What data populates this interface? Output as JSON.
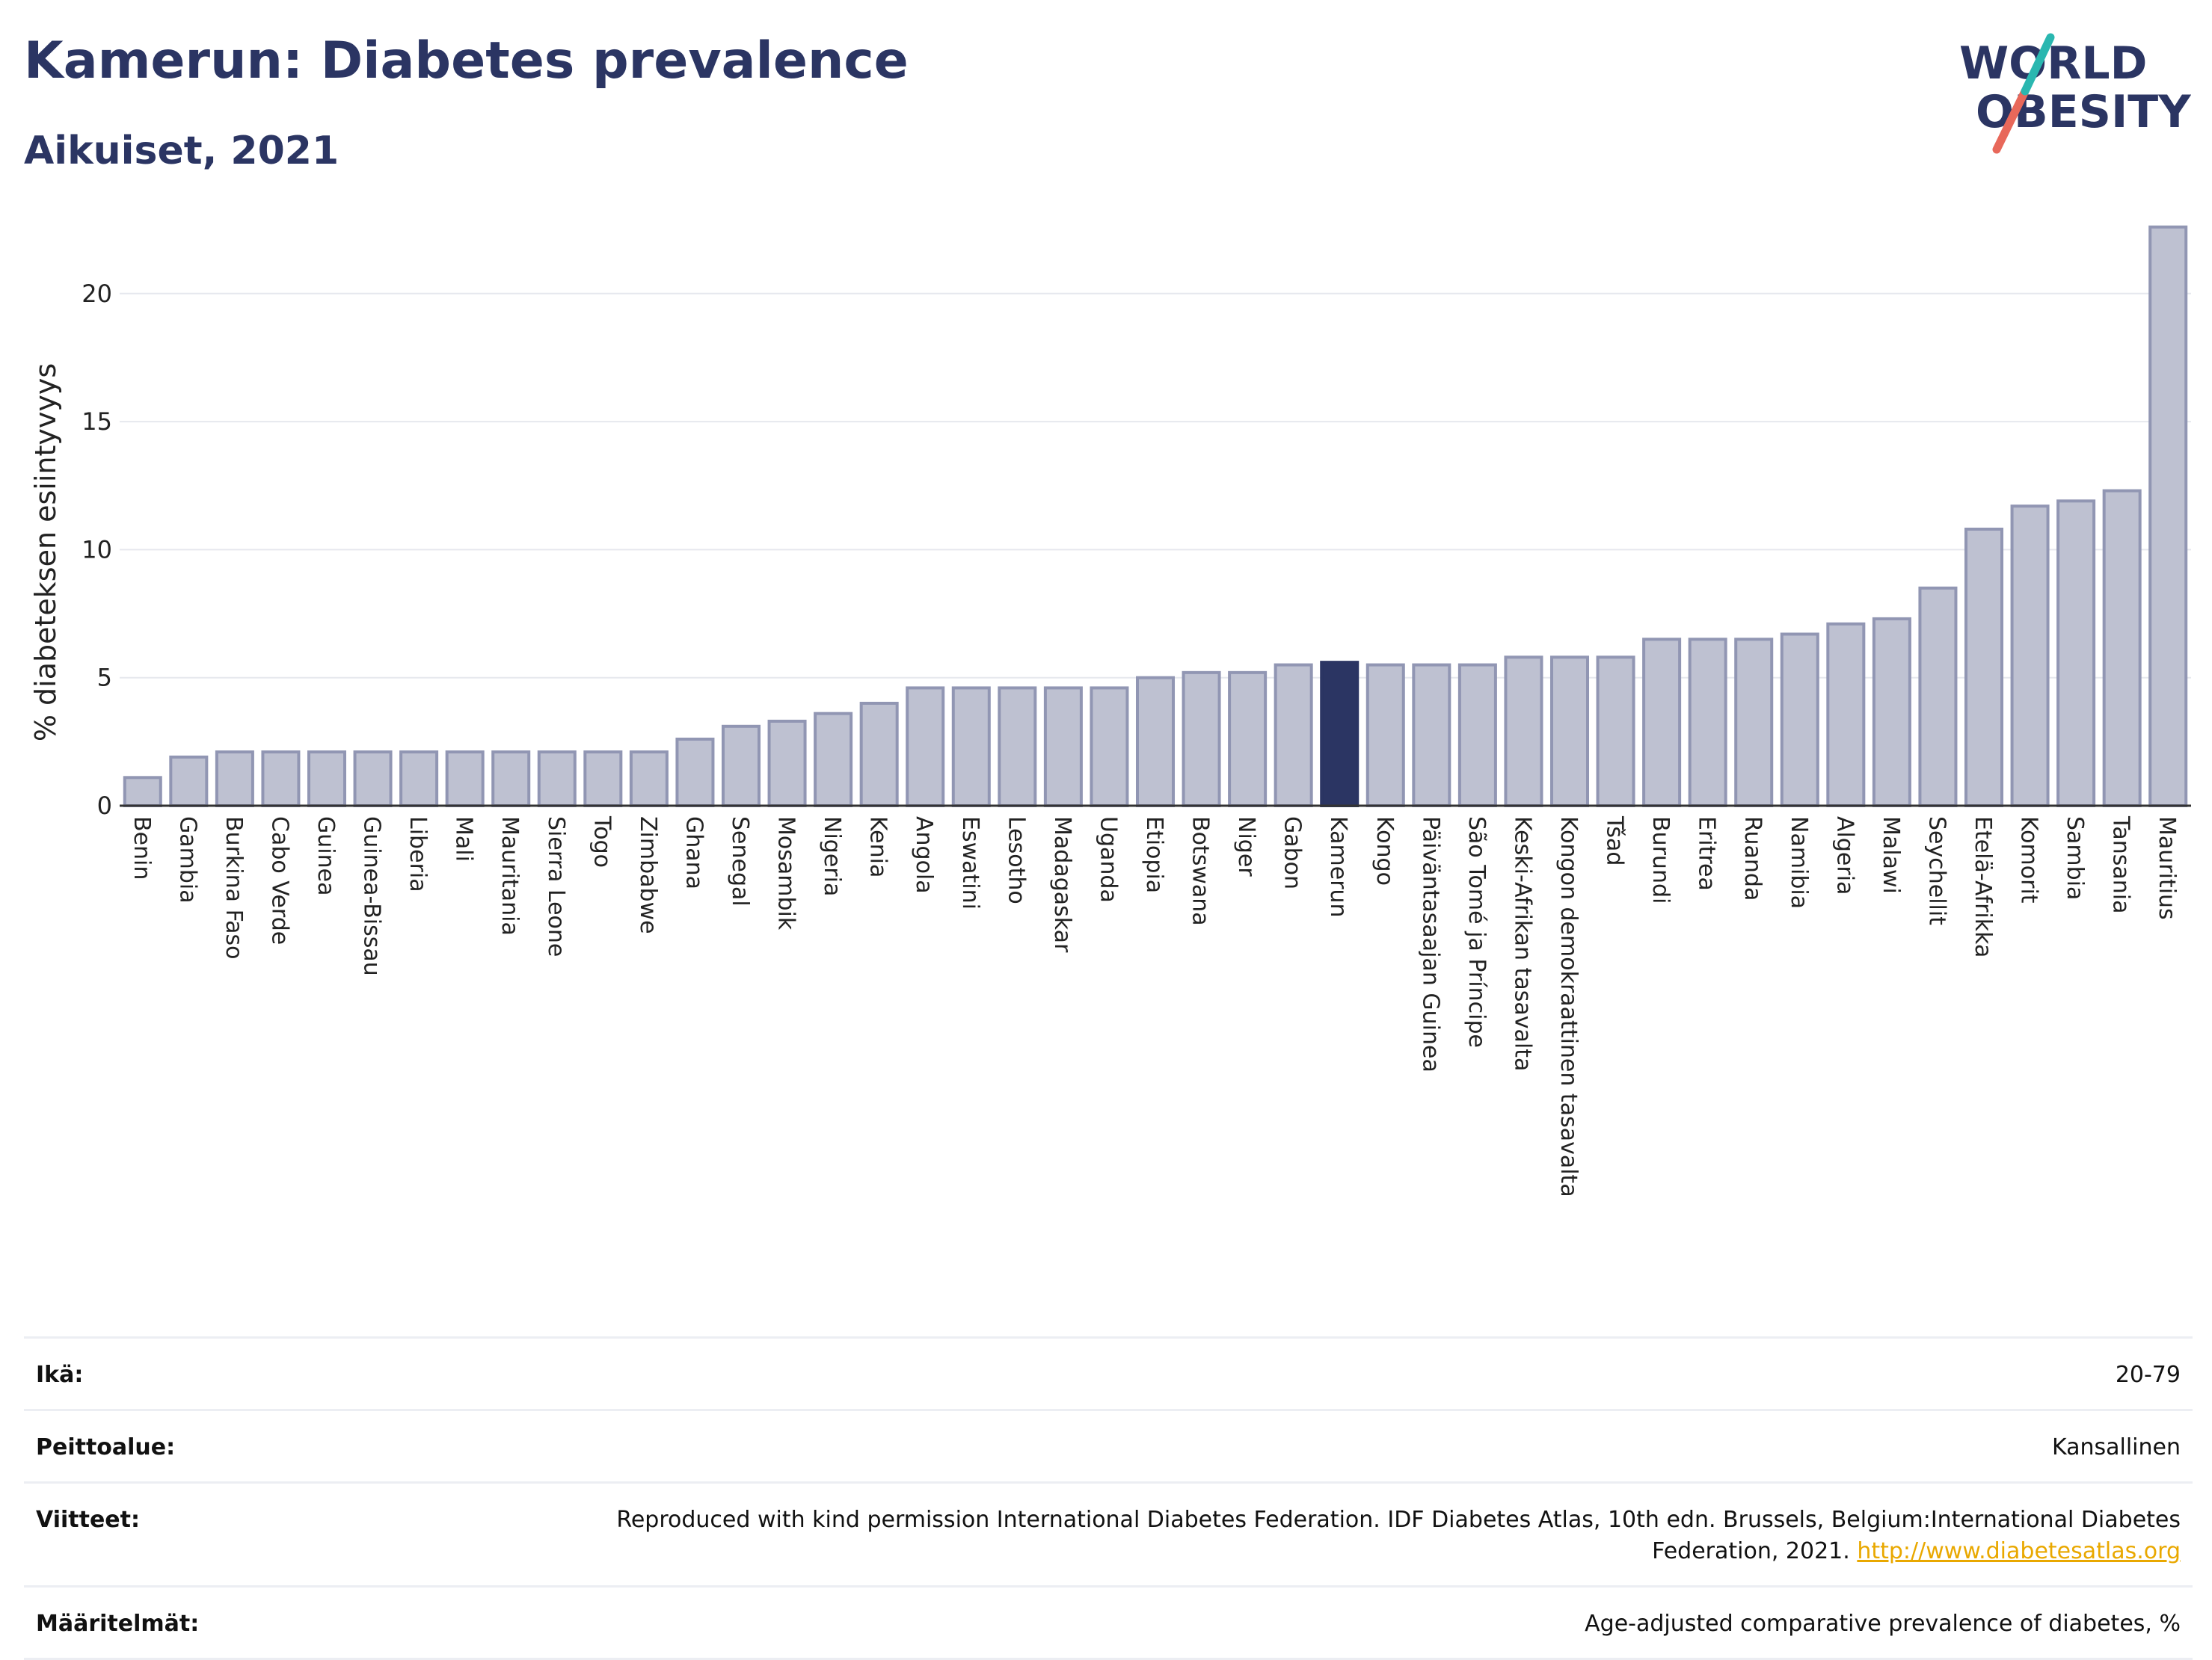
{
  "header": {
    "title": "Kamerun: Diabetes prevalence",
    "subtitle": "Aikuiset, 2021"
  },
  "logo": {
    "line1": "WORLD",
    "line2": "OBESITY",
    "icon": "world-obesity-logo",
    "colors": {
      "text": "#2b3563",
      "slash_top": "#2ab7b0",
      "slash_bottom": "#e8685a"
    }
  },
  "chart_data": {
    "type": "bar",
    "ylabel": "% diabeteksen esiintyvyys",
    "xlabel": "",
    "ylim": [
      0,
      23
    ],
    "yticks": [
      0,
      5,
      10,
      15,
      20
    ],
    "grid": true,
    "highlight": "Kamerun",
    "colors": {
      "bar": "#bec1d1",
      "bar_edge": "#9196b3",
      "highlight": "#2b3563"
    },
    "categories": [
      "Benin",
      "Gambia",
      "Burkina Faso",
      "Cabo Verde",
      "Guinea",
      "Guinea-Bissau",
      "Liberia",
      "Mali",
      "Mauritania",
      "Sierra Leone",
      "Togo",
      "Zimbabwe",
      "Ghana",
      "Senegal",
      "Mosambik",
      "Nigeria",
      "Kenia",
      "Angola",
      "Eswatini",
      "Lesotho",
      "Madagaskar",
      "Uganda",
      "Etiopia",
      "Botswana",
      "Niger",
      "Gabon",
      "Kamerun",
      "Kongo",
      "Päiväntasaajan Guinea",
      "São Tomé ja Príncipe",
      "Keski-Afrikan tasavalta",
      "Kongon demokraattinen tasavalta",
      "Tšad",
      "Burundi",
      "Eritrea",
      "Ruanda",
      "Namibia",
      "Algeria",
      "Malawi",
      "Seychellit",
      "Etelä-Afrikka",
      "Komorit",
      "Sambia",
      "Tansania",
      "Mauritius"
    ],
    "values": [
      1.1,
      1.9,
      2.1,
      2.1,
      2.1,
      2.1,
      2.1,
      2.1,
      2.1,
      2.1,
      2.1,
      2.1,
      2.6,
      3.1,
      3.3,
      3.6,
      4.0,
      4.6,
      4.6,
      4.6,
      4.6,
      4.6,
      5.0,
      5.2,
      5.2,
      5.5,
      5.6,
      5.5,
      5.5,
      5.5,
      5.8,
      5.8,
      5.8,
      6.5,
      6.5,
      6.5,
      6.7,
      7.1,
      7.3,
      8.5,
      10.8,
      11.7,
      11.9,
      12.3,
      22.6
    ]
  },
  "info": {
    "age_label": "Ikä:",
    "age_value": "20-79",
    "coverage_label": "Peittoalue:",
    "coverage_value": "Kansallinen",
    "references_label": "Viitteet:",
    "references_text": "Reproduced with kind permission International Diabetes Federation.  IDF Diabetes Atlas, 10th edn. Brussels, Belgium:International Diabetes Federation, 2021.",
    "references_link": "http://www.diabetesatlas.org",
    "definitions_label": "Määritelmät:",
    "definitions_value": "Age-adjusted comparative prevalence of diabetes, %"
  }
}
